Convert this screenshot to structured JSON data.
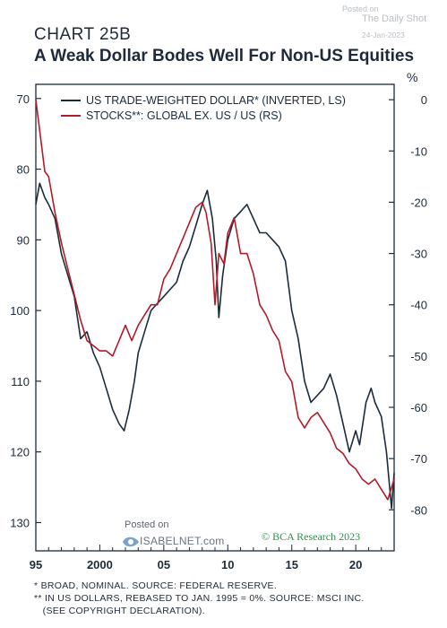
{
  "header": {
    "chart_label": "CHART 25B",
    "title": "A Weak Dollar Bodes Well For Non-US Equities"
  },
  "watermark": {
    "posted_on": "Posted on",
    "source": "The Daily Shot",
    "date": "24-Jan-2023"
  },
  "isabelnet": {
    "posted_on": "Posted on",
    "brand": "ISABELNET.com"
  },
  "credit": "© BCA Research 2023",
  "footnotes": [
    "*  BROAD, NOMINAL. SOURCE: FEDERAL RESERVE.",
    "** IN US DOLLARS, REBASED TO JAN. 1995 = 0%. SOURCE: MSCI INC.",
    "   (SEE COPYRIGHT DECLARATION)."
  ],
  "chart_data": {
    "type": "line",
    "x_ticks": [
      "95",
      "2000",
      "05",
      "10",
      "15",
      "20"
    ],
    "x_range": [
      1995,
      2023
    ],
    "left_axis": {
      "inverted": true,
      "range": [
        68,
        134
      ],
      "ticks": [
        70,
        80,
        90,
        100,
        110,
        120,
        130
      ]
    },
    "right_axis": {
      "unit": "%",
      "range": [
        -88,
        3
      ],
      "ticks": [
        0,
        -10,
        -20,
        -30,
        -40,
        -50,
        -60,
        -70,
        -80
      ]
    },
    "legend_position": "top",
    "series": [
      {
        "name": "US TRADE-WEIGHTED DOLLAR* (INVERTED, LS)",
        "axis": "left",
        "color": "#1c2b3a",
        "points": [
          [
            1995.0,
            85
          ],
          [
            1995.3,
            82
          ],
          [
            1995.7,
            84
          ],
          [
            1996.0,
            85
          ],
          [
            1996.5,
            87
          ],
          [
            1997.0,
            92
          ],
          [
            1997.5,
            95
          ],
          [
            1998.0,
            98
          ],
          [
            1998.5,
            104
          ],
          [
            1999.0,
            103
          ],
          [
            1999.5,
            106
          ],
          [
            2000.0,
            108
          ],
          [
            2000.5,
            111
          ],
          [
            2001.0,
            114
          ],
          [
            2001.5,
            116
          ],
          [
            2001.9,
            117
          ],
          [
            2002.3,
            114
          ],
          [
            2002.7,
            110
          ],
          [
            2003.0,
            106
          ],
          [
            2003.5,
            103
          ],
          [
            2004.0,
            100
          ],
          [
            2004.5,
            99
          ],
          [
            2005.0,
            98
          ],
          [
            2005.5,
            97
          ],
          [
            2006.0,
            96
          ],
          [
            2006.5,
            93
          ],
          [
            2007.0,
            91
          ],
          [
            2007.5,
            88
          ],
          [
            2008.0,
            85
          ],
          [
            2008.4,
            83
          ],
          [
            2008.8,
            87
          ],
          [
            2009.1,
            93
          ],
          [
            2009.3,
            101
          ],
          [
            2009.6,
            95
          ],
          [
            2010.0,
            90
          ],
          [
            2010.5,
            87
          ],
          [
            2011.0,
            86
          ],
          [
            2011.5,
            85
          ],
          [
            2012.0,
            87
          ],
          [
            2012.5,
            89
          ],
          [
            2013.0,
            89
          ],
          [
            2013.5,
            90
          ],
          [
            2014.0,
            91
          ],
          [
            2014.5,
            93
          ],
          [
            2015.0,
            100
          ],
          [
            2015.5,
            104
          ],
          [
            2016.0,
            110
          ],
          [
            2016.5,
            113
          ],
          [
            2017.0,
            112
          ],
          [
            2017.5,
            111
          ],
          [
            2018.0,
            109
          ],
          [
            2018.5,
            112
          ],
          [
            2019.0,
            116
          ],
          [
            2019.5,
            120
          ],
          [
            2020.0,
            117
          ],
          [
            2020.3,
            119
          ],
          [
            2020.8,
            113
          ],
          [
            2021.2,
            111
          ],
          [
            2021.5,
            113
          ],
          [
            2022.0,
            115
          ],
          [
            2022.4,
            120
          ],
          [
            2022.8,
            128
          ],
          [
            2023.0,
            123
          ]
        ]
      },
      {
        "name": "STOCKS**: GLOBAL EX. US / US (RS)",
        "axis": "right",
        "color": "#b01c2a",
        "points": [
          [
            1995.0,
            0
          ],
          [
            1995.3,
            -6
          ],
          [
            1995.7,
            -14
          ],
          [
            1996.0,
            -15
          ],
          [
            1996.5,
            -22
          ],
          [
            1997.0,
            -28
          ],
          [
            1997.5,
            -33
          ],
          [
            1998.0,
            -38
          ],
          [
            1998.5,
            -43
          ],
          [
            1999.0,
            -47
          ],
          [
            1999.5,
            -48
          ],
          [
            2000.0,
            -49
          ],
          [
            2000.5,
            -49
          ],
          [
            2001.0,
            -50
          ],
          [
            2001.5,
            -47
          ],
          [
            2002.0,
            -44
          ],
          [
            2002.5,
            -47
          ],
          [
            2003.0,
            -44
          ],
          [
            2003.5,
            -42
          ],
          [
            2004.0,
            -40
          ],
          [
            2004.5,
            -40
          ],
          [
            2005.0,
            -35
          ],
          [
            2005.5,
            -33
          ],
          [
            2006.0,
            -30
          ],
          [
            2006.5,
            -27
          ],
          [
            2007.0,
            -24
          ],
          [
            2007.5,
            -21
          ],
          [
            2008.0,
            -20
          ],
          [
            2008.3,
            -22
          ],
          [
            2008.7,
            -28
          ],
          [
            2009.0,
            -40
          ],
          [
            2009.3,
            -30
          ],
          [
            2009.7,
            -32
          ],
          [
            2010.0,
            -26
          ],
          [
            2010.5,
            -23
          ],
          [
            2011.0,
            -30
          ],
          [
            2011.5,
            -30
          ],
          [
            2012.0,
            -34
          ],
          [
            2012.5,
            -40
          ],
          [
            2013.0,
            -42
          ],
          [
            2013.5,
            -45
          ],
          [
            2014.0,
            -47
          ],
          [
            2014.5,
            -53
          ],
          [
            2015.0,
            -55
          ],
          [
            2015.5,
            -62
          ],
          [
            2016.0,
            -64
          ],
          [
            2016.5,
            -62
          ],
          [
            2017.0,
            -61
          ],
          [
            2017.5,
            -63
          ],
          [
            2018.0,
            -65
          ],
          [
            2018.5,
            -68
          ],
          [
            2019.0,
            -69
          ],
          [
            2019.5,
            -71
          ],
          [
            2020.0,
            -72
          ],
          [
            2020.5,
            -74
          ],
          [
            2021.0,
            -75
          ],
          [
            2021.5,
            -74
          ],
          [
            2022.0,
            -76
          ],
          [
            2022.5,
            -78
          ],
          [
            2023.0,
            -74
          ]
        ]
      }
    ]
  }
}
